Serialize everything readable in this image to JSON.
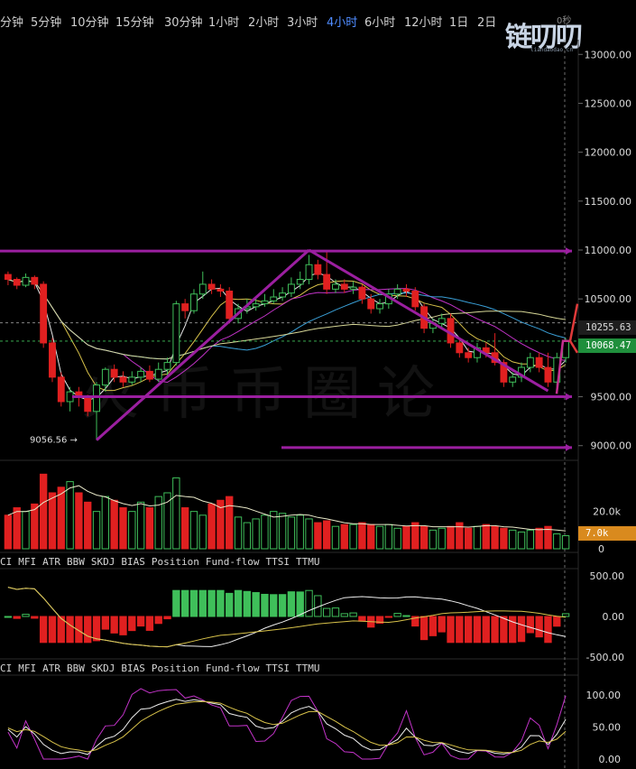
{
  "toolbar": {
    "timeframes": [
      {
        "label": "分钟",
        "active": false
      },
      {
        "label": "5分钟",
        "active": false
      },
      {
        "label": "10分钟",
        "active": false
      },
      {
        "label": "15分钟",
        "active": false
      },
      {
        "label": "30分钟",
        "active": false
      },
      {
        "label": "1小时",
        "active": false
      },
      {
        "label": "2小时",
        "active": false
      },
      {
        "label": "3小时",
        "active": false
      },
      {
        "label": "4小时",
        "active": true
      },
      {
        "label": "6小时",
        "active": false
      },
      {
        "label": "12小时",
        "active": false
      },
      {
        "label": "1日",
        "active": false
      },
      {
        "label": "2日",
        "active": false
      }
    ],
    "countdown": "0秒",
    "logo_text": "链叨叨",
    "logo_url": "liandaodao.cn"
  },
  "watermark": "火币币圈论",
  "colors": {
    "up": "#3fbf5a",
    "down": "#e02020",
    "accent": "#4f8cff",
    "annotation": "#9b1fa0",
    "last_price_bg": "#1f8f3c",
    "volume_tag_bg": "#d98a1e"
  },
  "price_panel": {
    "last_price_tag": "10068.47",
    "ref_price_tag": "10255.63",
    "min_label": "9056.56 →",
    "y_ticks": [
      "13000.00",
      "12500.00",
      "12000.00",
      "11500.00",
      "11000.00",
      "10500.00",
      "10000.00",
      "9500.00",
      "9000.00"
    ]
  },
  "volume_panel": {
    "ticks": [
      "20.0k",
      "0"
    ],
    "current_tag": "7.0k"
  },
  "indicator_menus": [
    {
      "items": [
        "CI",
        "MFI",
        "ATR",
        "BBW",
        "SKDJ",
        "BIAS",
        "Position",
        "Fund-flow",
        "TTSI",
        "TTMU"
      ]
    },
    {
      "items": [
        "CI",
        "MFI",
        "ATR",
        "BBW",
        "SKDJ",
        "BIAS",
        "Position",
        "Fund-flow",
        "TTSI",
        "TTMU"
      ]
    }
  ],
  "oscillator_panel": {
    "ticks": [
      "500.00",
      "0.00",
      "-500.00"
    ]
  },
  "kdj_panel": {
    "ticks": [
      "100.00",
      "50.00",
      "0.00"
    ]
  },
  "chart_data": {
    "type": "candlestick",
    "interval": "4小时",
    "ylim": [
      8850,
      13150
    ],
    "candles": [
      [
        10750,
        10700,
        10780,
        10640
      ],
      [
        10700,
        10640,
        10720,
        10600
      ],
      [
        10640,
        10720,
        10760,
        10620
      ],
      [
        10720,
        10650,
        10740,
        10600
      ],
      [
        10650,
        10050,
        10680,
        10000
      ],
      [
        10050,
        9700,
        10100,
        9650
      ],
      [
        9700,
        9450,
        9750,
        9400
      ],
      [
        9450,
        9550,
        9600,
        9350
      ],
      [
        9550,
        9500,
        9600,
        9400
      ],
      [
        9500,
        9350,
        9520,
        9300
      ],
      [
        9350,
        9620,
        9650,
        9056.56
      ],
      [
        9620,
        9780,
        9800,
        9550
      ],
      [
        9780,
        9700,
        9830,
        9650
      ],
      [
        9700,
        9650,
        9760,
        9600
      ],
      [
        9650,
        9700,
        9760,
        9620
      ],
      [
        9700,
        9760,
        9800,
        9650
      ],
      [
        9760,
        9680,
        9820,
        9650
      ],
      [
        9680,
        9780,
        9850,
        9650
      ],
      [
        9780,
        9850,
        9900,
        9720
      ],
      [
        9850,
        10450,
        10480,
        9820
      ],
      [
        10450,
        10380,
        10500,
        10300
      ],
      [
        10380,
        10550,
        10600,
        10350
      ],
      [
        10550,
        10650,
        10780,
        10500
      ],
      [
        10650,
        10600,
        10700,
        10550
      ],
      [
        10600,
        10580,
        10650,
        10520
      ],
      [
        10580,
        10300,
        10620,
        10250
      ],
      [
        10300,
        10400,
        10450,
        10250
      ],
      [
        10400,
        10420,
        10500,
        10350
      ],
      [
        10420,
        10450,
        10520,
        10380
      ],
      [
        10450,
        10480,
        10550,
        10420
      ],
      [
        10480,
        10520,
        10600,
        10450
      ],
      [
        10520,
        10560,
        10620,
        10480
      ],
      [
        10560,
        10650,
        10720,
        10520
      ],
      [
        10650,
        10700,
        10780,
        10600
      ],
      [
        10700,
        10850,
        10950,
        10650
      ],
      [
        10850,
        10750,
        10900,
        10700
      ],
      [
        10750,
        10600,
        11000,
        10550
      ],
      [
        10600,
        10650,
        10700,
        10560
      ],
      [
        10650,
        10600,
        10700,
        10560
      ],
      [
        10600,
        10620,
        10680,
        10550
      ],
      [
        10620,
        10500,
        10650,
        10450
      ],
      [
        10500,
        10400,
        10550,
        10350
      ],
      [
        10400,
        10450,
        10500,
        10350
      ],
      [
        10450,
        10550,
        10600,
        10400
      ],
      [
        10550,
        10600,
        10650,
        10500
      ],
      [
        10600,
        10580,
        10650,
        10520
      ],
      [
        10580,
        10420,
        10620,
        10380
      ],
      [
        10420,
        10200,
        10450,
        10150
      ],
      [
        10200,
        10250,
        10300,
        10150
      ],
      [
        10250,
        10300,
        10350,
        10200
      ],
      [
        10300,
        10050,
        10350,
        10000
      ],
      [
        10050,
        9950,
        10100,
        9900
      ],
      [
        9950,
        9900,
        10000,
        9850
      ],
      [
        9900,
        10000,
        10050,
        9850
      ],
      [
        10000,
        9950,
        10050,
        9900
      ],
      [
        9950,
        9850,
        10150,
        9820
      ],
      [
        9850,
        9650,
        9880,
        9600
      ],
      [
        9650,
        9700,
        9750,
        9600
      ],
      [
        9700,
        9800,
        9850,
        9650
      ],
      [
        9800,
        9900,
        9950,
        9750
      ],
      [
        9900,
        9800,
        9950,
        9750
      ],
      [
        9800,
        9650,
        9950,
        9600
      ],
      [
        9650,
        9900,
        9950,
        9600
      ],
      [
        9900,
        10068.47,
        10100,
        9850
      ]
    ],
    "volume": [
      18,
      22,
      20,
      24,
      40,
      30,
      33,
      36,
      30,
      25,
      20,
      28,
      26,
      22,
      20,
      25,
      22,
      28,
      30,
      38,
      22,
      20,
      18,
      24,
      26,
      28,
      17,
      14,
      16,
      18,
      20,
      19,
      17,
      18,
      16,
      14,
      15,
      12,
      13,
      13,
      14,
      13,
      12,
      13,
      11,
      12,
      14,
      12,
      10,
      11,
      12,
      14,
      11,
      12,
      13,
      12,
      11,
      10,
      9,
      10,
      11,
      12,
      8,
      7
    ],
    "annotations": [
      {
        "type": "trendline",
        "points": [
          [
            10,
            9056
          ],
          [
            34,
            11000
          ]
        ]
      },
      {
        "type": "trendline",
        "points": [
          [
            34,
            11000
          ],
          [
            61,
            9560
          ]
        ]
      },
      {
        "type": "horizontal",
        "y": 10990
      },
      {
        "type": "horizontal",
        "y": 9500
      },
      {
        "type": "horizontal",
        "y": 8980
      }
    ]
  }
}
